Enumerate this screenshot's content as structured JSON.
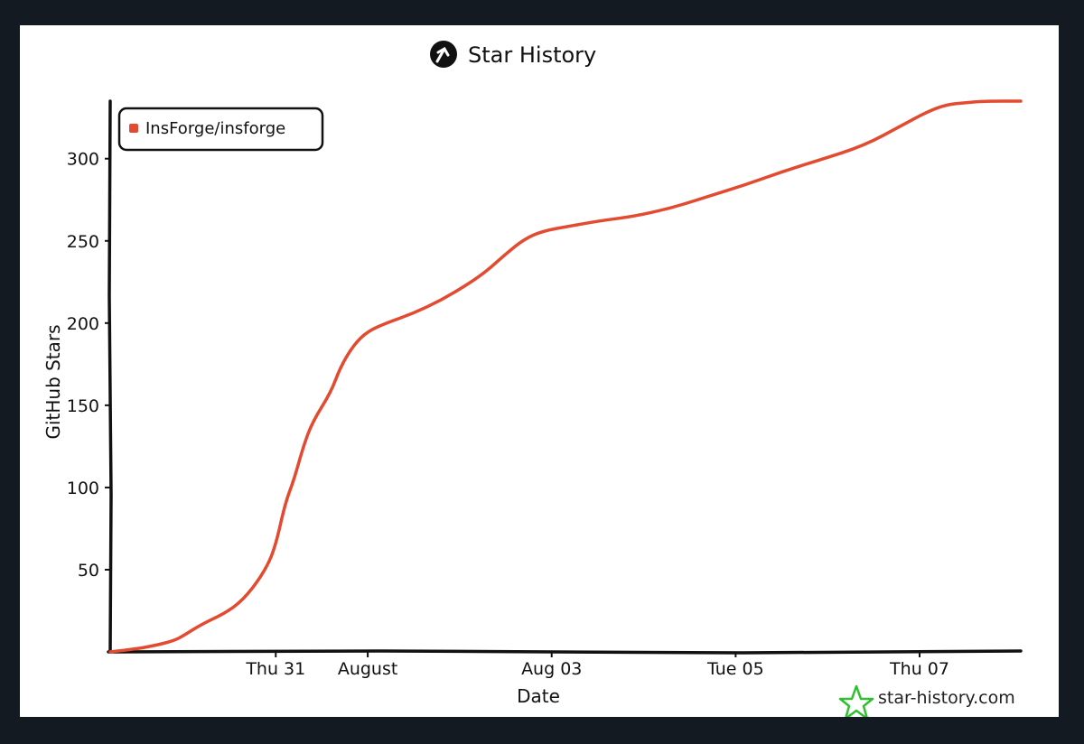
{
  "chart_data": {
    "type": "line",
    "title": "Star History",
    "xlabel": "Date",
    "ylabel": "GitHub Stars",
    "x_ticks": [
      {
        "label": "Thu 31",
        "day": 1.0
      },
      {
        "label": "August",
        "day": 2.0
      },
      {
        "label": "Aug 03",
        "day": 4.0
      },
      {
        "label": "Tue 05",
        "day": 6.0
      },
      {
        "label": "Thu 07",
        "day": 8.0
      }
    ],
    "y_ticks": [
      50,
      100,
      150,
      200,
      250,
      300
    ],
    "xlim": [
      -0.8,
      9.1
    ],
    "ylim": [
      0,
      335
    ],
    "grid": false,
    "legend_position": "top-left",
    "series": [
      {
        "name": "InsForge/insforge",
        "color": "#e34a2f",
        "points": [
          [
            -0.8,
            0
          ],
          [
            -0.5,
            2
          ],
          [
            -0.3,
            4
          ],
          [
            -0.1,
            7
          ],
          [
            0.0,
            10
          ],
          [
            0.2,
            17
          ],
          [
            0.5,
            25
          ],
          [
            0.7,
            35
          ],
          [
            0.9,
            51
          ],
          [
            1.0,
            65
          ],
          [
            1.1,
            90
          ],
          [
            1.2,
            105
          ],
          [
            1.3,
            125
          ],
          [
            1.4,
            140
          ],
          [
            1.6,
            158
          ],
          [
            1.7,
            173
          ],
          [
            1.85,
            187
          ],
          [
            2.0,
            195
          ],
          [
            2.2,
            200
          ],
          [
            2.5,
            206
          ],
          [
            2.8,
            214
          ],
          [
            3.1,
            224
          ],
          [
            3.3,
            232
          ],
          [
            3.5,
            242
          ],
          [
            3.7,
            251
          ],
          [
            3.9,
            256
          ],
          [
            4.2,
            259
          ],
          [
            4.5,
            262
          ],
          [
            4.9,
            265
          ],
          [
            5.3,
            270
          ],
          [
            5.7,
            277
          ],
          [
            6.1,
            284
          ],
          [
            6.5,
            292
          ],
          [
            6.9,
            299
          ],
          [
            7.4,
            308
          ],
          [
            7.8,
            320
          ],
          [
            8.1,
            329
          ],
          [
            8.3,
            333
          ],
          [
            8.5,
            334
          ],
          [
            8.7,
            335
          ],
          [
            9.1,
            335
          ]
        ]
      }
    ]
  },
  "watermark": {
    "text": "star-history.com",
    "icon": "star-outline-icon",
    "icon_color": "#2fbf2f"
  },
  "title_icon": {
    "icon": "github-star-history-logo",
    "color": "#111111"
  }
}
